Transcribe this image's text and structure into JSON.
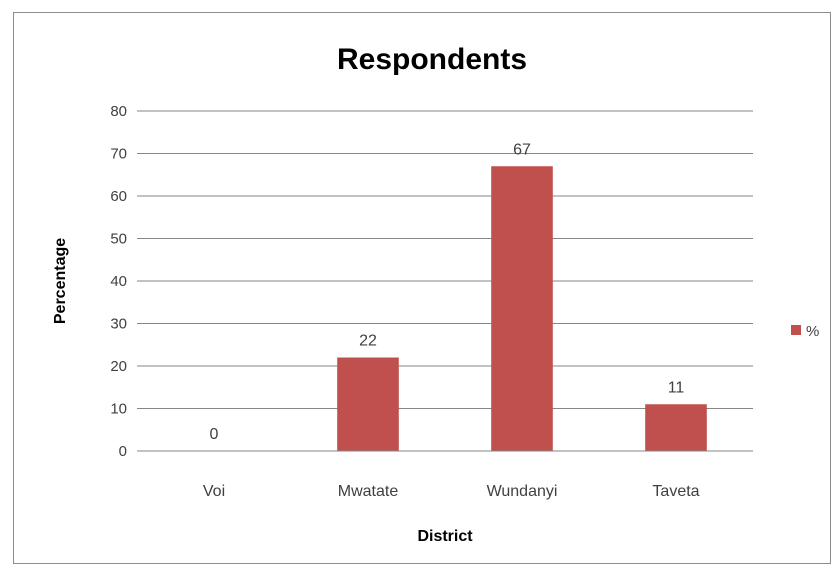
{
  "chart_data": {
    "type": "bar",
    "title": "Respondents",
    "xlabel": "District",
    "ylabel": "Percentage",
    "categories": [
      "Voi",
      "Mwatate",
      "Wundanyi",
      "Taveta"
    ],
    "series": [
      {
        "name": "%",
        "values": [
          0,
          22,
          67,
          11
        ],
        "color": "#c0504d"
      }
    ],
    "data_labels": [
      "0",
      "22",
      "67",
      "11"
    ],
    "ylim": [
      0,
      80
    ],
    "yticks": [
      0,
      10,
      20,
      30,
      40,
      50,
      60,
      70,
      80
    ],
    "grid": true,
    "legend_position": "right"
  }
}
